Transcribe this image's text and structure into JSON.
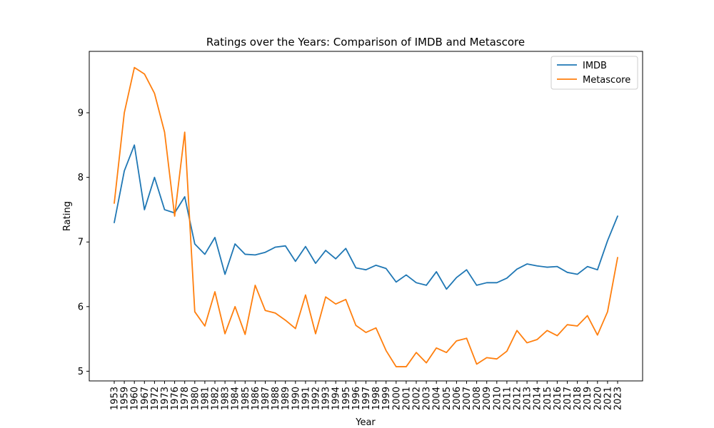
{
  "chart_data": {
    "type": "line",
    "title": "Ratings over the Years: Comparison of IMDB and Metascore",
    "xlabel": "Year",
    "ylabel": "Rating",
    "ylim": [
      4.85,
      9.95
    ],
    "yticks": [
      5,
      6,
      7,
      8,
      9
    ],
    "grid": false,
    "legend_position": "top-right",
    "categories": [
      "1953",
      "1959",
      "1960",
      "1967",
      "1972",
      "1973",
      "1976",
      "1978",
      "1980",
      "1981",
      "1982",
      "1983",
      "1984",
      "1985",
      "1986",
      "1987",
      "1988",
      "1989",
      "1990",
      "1991",
      "1992",
      "1993",
      "1994",
      "1995",
      "1996",
      "1997",
      "1998",
      "1999",
      "2000",
      "2001",
      "2002",
      "2003",
      "2004",
      "2005",
      "2006",
      "2007",
      "2008",
      "2009",
      "2010",
      "2011",
      "2012",
      "2013",
      "2014",
      "2015",
      "2016",
      "2017",
      "2018",
      "2019",
      "2020",
      "2021",
      "2023"
    ],
    "series": [
      {
        "name": "IMDB",
        "color": "#1f77b4",
        "values": [
          7.3,
          8.1,
          8.5,
          7.5,
          8.0,
          7.5,
          7.45,
          7.7,
          6.97,
          6.81,
          7.07,
          6.5,
          6.97,
          6.81,
          6.8,
          6.84,
          6.92,
          6.94,
          6.7,
          6.93,
          6.67,
          6.87,
          6.74,
          6.9,
          6.6,
          6.57,
          6.64,
          6.59,
          6.38,
          6.49,
          6.37,
          6.33,
          6.54,
          6.27,
          6.45,
          6.57,
          6.33,
          6.37,
          6.37,
          6.44,
          6.58,
          6.66,
          6.63,
          6.61,
          6.62,
          6.53,
          6.5,
          6.62,
          6.57,
          7.02,
          7.4
        ]
      },
      {
        "name": "Metascore",
        "color": "#ff7f0e",
        "values": [
          7.6,
          9.0,
          9.7,
          9.6,
          9.3,
          8.7,
          7.4,
          8.7,
          5.92,
          5.7,
          6.23,
          5.58,
          6.0,
          5.57,
          6.33,
          5.94,
          5.9,
          5.79,
          5.66,
          6.18,
          5.58,
          6.15,
          6.04,
          6.11,
          5.71,
          5.6,
          5.67,
          5.32,
          5.07,
          5.07,
          5.29,
          5.13,
          5.36,
          5.29,
          5.47,
          5.51,
          5.11,
          5.21,
          5.19,
          5.31,
          5.63,
          5.44,
          5.49,
          5.63,
          5.55,
          5.72,
          5.7,
          5.86,
          5.56,
          5.92,
          6.76
        ]
      }
    ]
  }
}
